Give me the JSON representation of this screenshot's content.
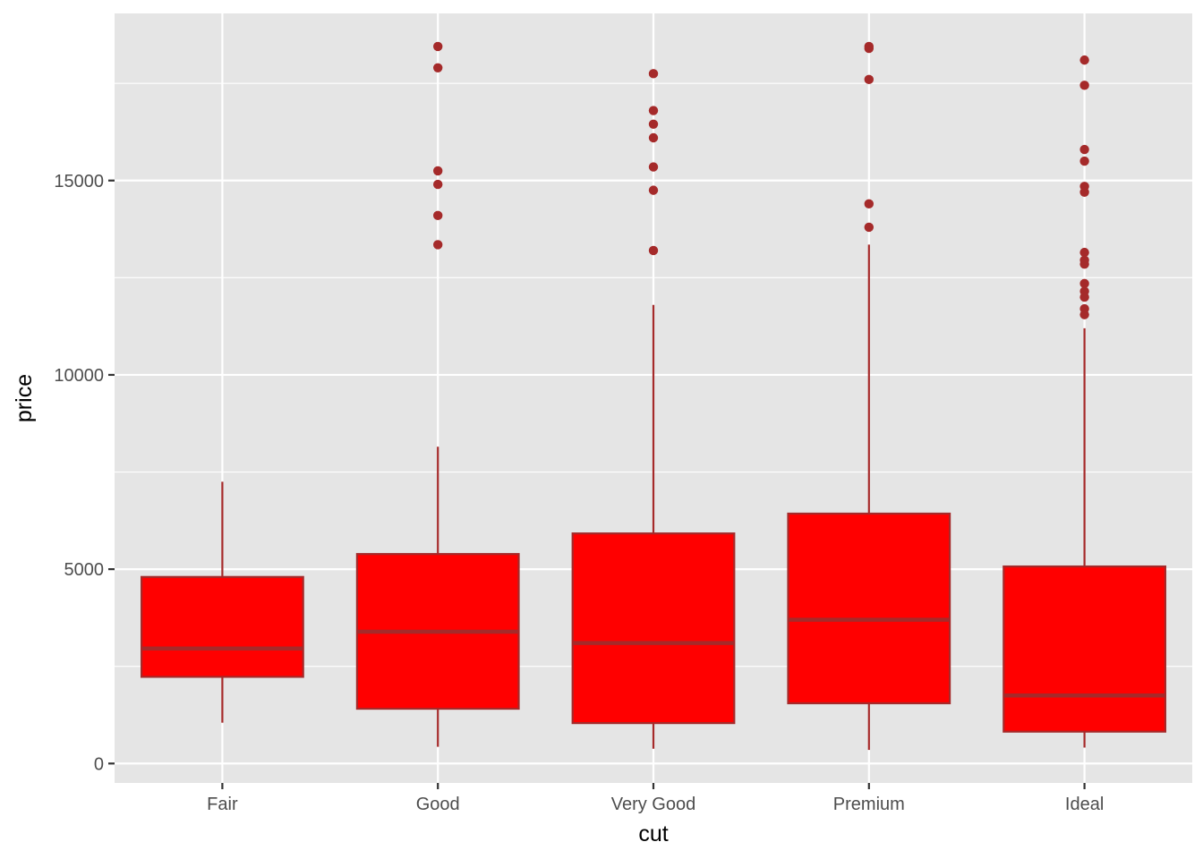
{
  "chart_data": {
    "type": "boxplot",
    "title": "",
    "xlabel": "cut",
    "ylabel": "price",
    "categories": [
      "Fair",
      "Good",
      "Very Good",
      "Premium",
      "Ideal"
    ],
    "ylim": [
      -500,
      19300
    ],
    "y_ticks": [
      0,
      5000,
      10000,
      15000
    ],
    "y_tick_labels": [
      "0",
      "5000",
      "10000",
      "15000"
    ],
    "grid": true,
    "boxes": [
      {
        "category": "Fair",
        "lower_whisker": 1050,
        "q1": 2230,
        "median": 2960,
        "q3": 4800,
        "upper_whisker": 7250,
        "outliers": []
      },
      {
        "category": "Good",
        "lower_whisker": 430,
        "q1": 1410,
        "median": 3390,
        "q3": 5390,
        "upper_whisker": 8150,
        "outliers": [
          13350,
          14100,
          14900,
          15250,
          17900,
          18450
        ]
      },
      {
        "category": "Very Good",
        "lower_whisker": 380,
        "q1": 1040,
        "median": 3100,
        "q3": 5920,
        "upper_whisker": 11800,
        "outliers": [
          13200,
          14750,
          15350,
          16100,
          16450,
          16800,
          17750
        ]
      },
      {
        "category": "Premium",
        "lower_whisker": 350,
        "q1": 1550,
        "median": 3700,
        "q3": 6430,
        "upper_whisker": 13350,
        "outliers": [
          13800,
          14400,
          17600,
          18400,
          18450
        ]
      },
      {
        "category": "Ideal",
        "lower_whisker": 410,
        "q1": 820,
        "median": 1750,
        "q3": 5070,
        "upper_whisker": 11200,
        "outliers": [
          11550,
          11700,
          12000,
          12150,
          12350,
          12850,
          12950,
          13150,
          14700,
          14850,
          15500,
          15800,
          17450,
          18100
        ]
      }
    ],
    "colors": {
      "panel_background": "#e5e5e5",
      "grid_major": "#ffffff",
      "box_fill": "#ff0000",
      "box_line": "#a52a2a",
      "outlier": "#a52a2a",
      "tick_text": "#4d4d4d",
      "axis_title": "#000000"
    }
  }
}
